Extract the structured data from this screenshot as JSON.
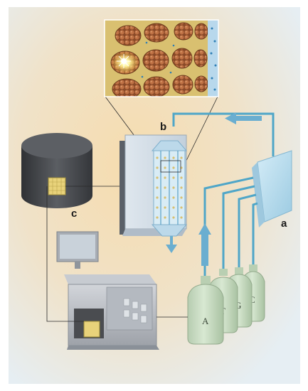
{
  "labels": {
    "a": "a",
    "b": "b",
    "c": "c"
  },
  "bottles": [
    {
      "letter": "A"
    },
    {
      "letter": "T"
    },
    {
      "letter": "G"
    },
    {
      "letter": "C"
    }
  ],
  "colors": {
    "background_center": "#f6dcae",
    "background_edge": "#e6eef3",
    "tubing": "#4fa6c8",
    "flow_arrow": "#6aaed0",
    "bottle": "#c9dcc2",
    "pump": "#bfe0f0",
    "machine": "#b8bcc4",
    "camera": "#4a4c50",
    "beads": "#b0663a",
    "chip_yellow": "#e8d27a"
  }
}
